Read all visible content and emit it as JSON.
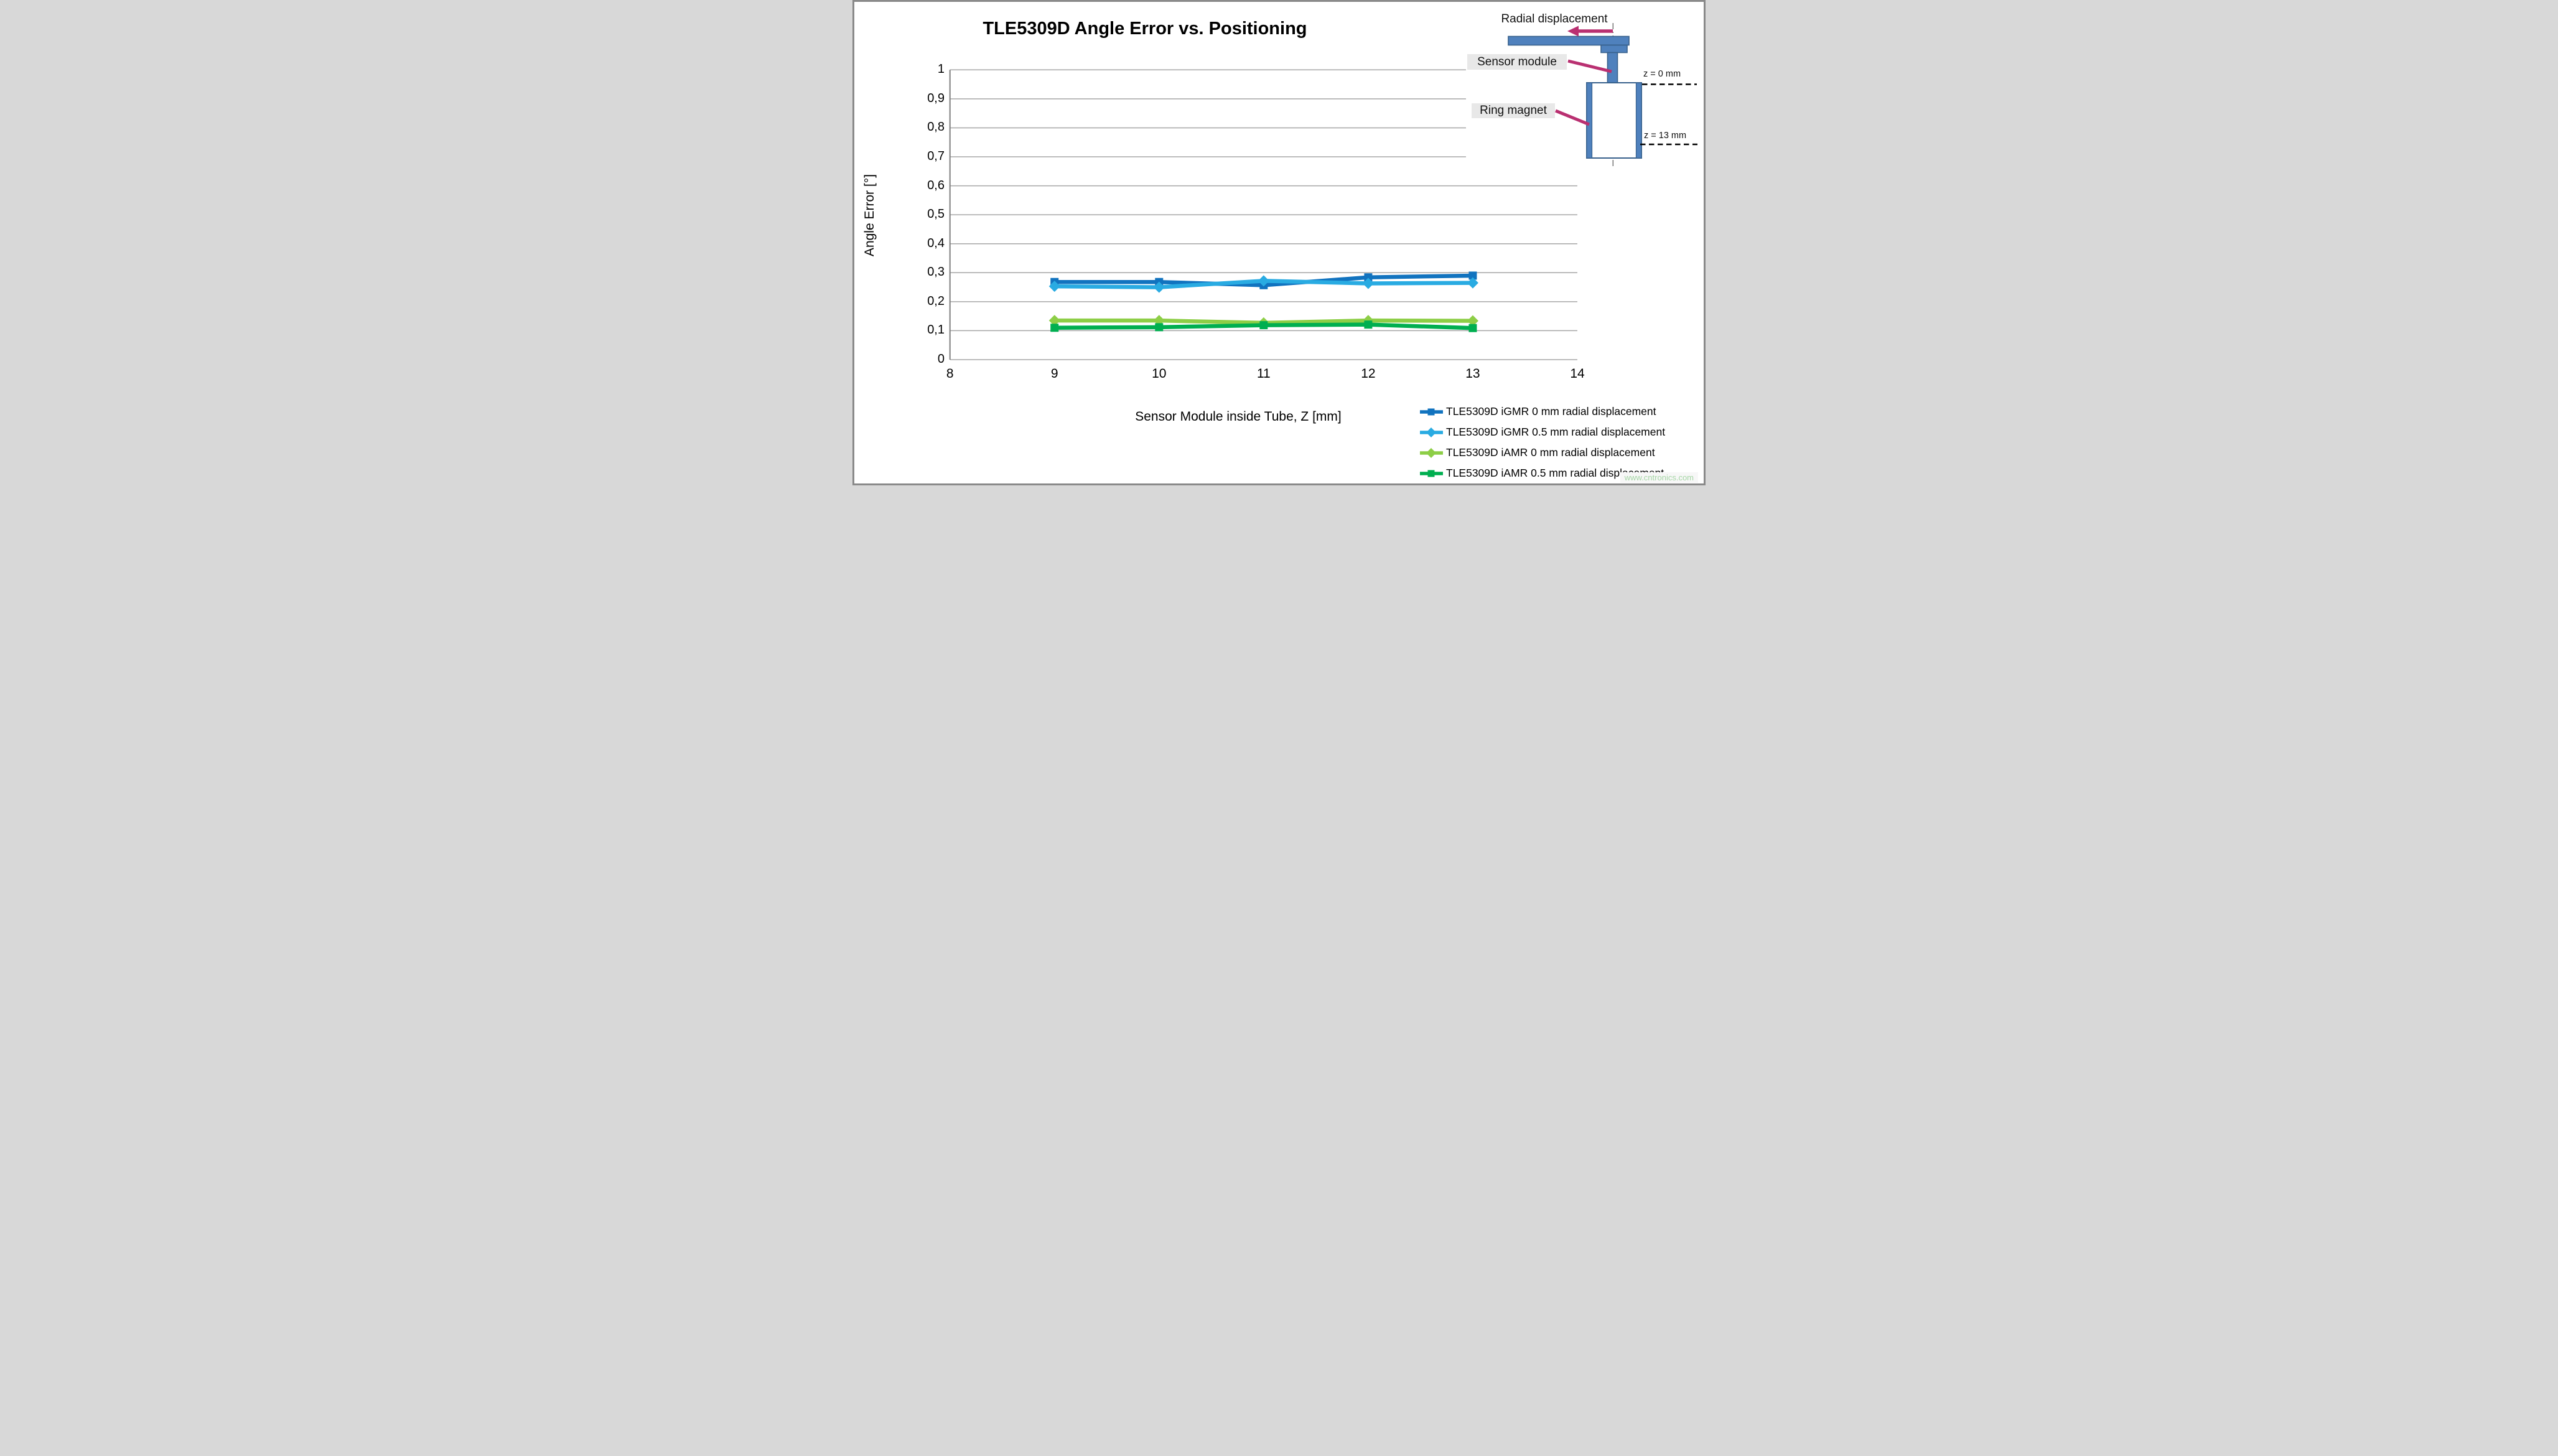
{
  "page": {
    "watermark": "www.cntronics.com"
  },
  "chart": {
    "title": "TLE5309D Angle Error vs. Positioning",
    "x_axis": {
      "title": "Sensor Module inside Tube, Z [mm]",
      "tick_labels": [
        "8",
        "9",
        "10",
        "11",
        "12",
        "13",
        "14"
      ],
      "tick_values": [
        8,
        9,
        10,
        11,
        12,
        13,
        14
      ]
    },
    "y_axis": {
      "title": "Angle Error [°]",
      "tick_labels": [
        "0",
        "0,1",
        "0,2",
        "0,3",
        "0,4",
        "0,5",
        "0,6",
        "0,7",
        "0,8",
        "0,9",
        "1"
      ],
      "tick_values": [
        0,
        0.1,
        0.2,
        0.3,
        0.4,
        0.5,
        0.6,
        0.7,
        0.8,
        0.9,
        1
      ]
    }
  },
  "chart_data": {
    "type": "line",
    "title": "TLE5309D Angle Error vs. Positioning",
    "xlabel": "Sensor Module inside Tube, Z [mm]",
    "ylabel": "Angle Error [°]",
    "x": [
      9,
      10,
      11,
      12,
      13
    ],
    "xlim": [
      8,
      14
    ],
    "ylim": [
      0,
      1
    ],
    "grid": "horizontal-only",
    "legend_position": "bottom-right",
    "decimal_separator_on_axis": "comma",
    "series": [
      {
        "name": "TLE5309D iGMR 0 mm radial displacement",
        "color": "#1173BF",
        "marker": "square",
        "values": [
          0.268,
          0.268,
          0.257,
          0.284,
          0.29
        ]
      },
      {
        "name": "TLE5309D iGMR 0.5 mm radial displacement",
        "color": "#29ABE2",
        "marker": "diamond",
        "values": [
          0.253,
          0.25,
          0.272,
          0.263,
          0.265
        ]
      },
      {
        "name": "TLE5309D iAMR 0 mm radial displacement",
        "color": "#8DCE46",
        "marker": "diamond",
        "values": [
          0.135,
          0.135,
          0.127,
          0.135,
          0.134
        ]
      },
      {
        "name": "TLE5309D iAMR 0.5 mm radial displacement",
        "color": "#00AF50",
        "marker": "square",
        "values": [
          0.11,
          0.112,
          0.119,
          0.121,
          0.109
        ]
      }
    ]
  },
  "inset": {
    "labels": {
      "radial": "Radial displacement",
      "sensor": "Sensor module",
      "ring": "Ring magnet",
      "z0": "z = 0 mm",
      "z13": "z = 13 mm"
    },
    "colors": {
      "shape_fill": "#4F81BD",
      "shape_border": "#38618C",
      "arrow": "#B93071",
      "label_bg": "#E8E8E8",
      "dashed_line": "#000000",
      "centerline": "#555555"
    }
  },
  "style": {
    "gridline_color": "#A6A6A6",
    "axis_border_color": "#7F7F7F",
    "watermark_color": "#A5D6A5"
  }
}
